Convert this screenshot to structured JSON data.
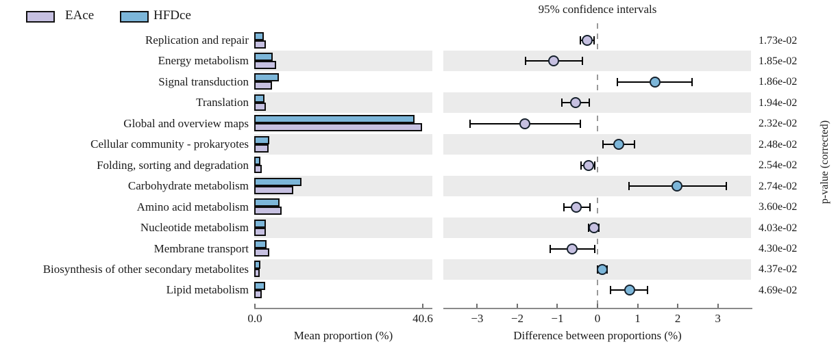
{
  "legend": {
    "items": [
      {
        "label": "EAce",
        "color": "#c6c0e1"
      },
      {
        "label": "HFDce",
        "color": "#7cb6d9"
      }
    ]
  },
  "right_panel_title": "95% confidence intervals",
  "right_side_label": "p-value (corrected)",
  "left_axis": {
    "label": "Mean proportion (%)",
    "tick_labels": [
      "0.0",
      "40.6"
    ]
  },
  "right_axis": {
    "label": "Difference between proportions (%)",
    "tick_labels": [
      "−3",
      "−2",
      "−1",
      "0",
      "1",
      "2",
      "3"
    ],
    "tick_values": [
      -3,
      -2,
      -1,
      0,
      1,
      2,
      3
    ]
  },
  "colors": {
    "eace": "#c6c0e1",
    "hfdce": "#7cb6d9",
    "stripe": "#ebebeb",
    "axis": "#8a8a8a",
    "dashed_line": "#999999",
    "bar_border": "#0d0d0d",
    "errorbar": "#000000"
  },
  "chart_data": {
    "type": "bar",
    "title": "95% confidence intervals",
    "xlabel_left": "Mean proportion (%)",
    "xlabel_right": "Difference between proportions (%)",
    "left_xlim": [
      0,
      40.6
    ],
    "right_xlim": [
      -3.85,
      3.85
    ],
    "grid": false,
    "legend_position": "top-left",
    "categories": [
      "Replication and repair",
      "Energy metabolism",
      "Signal transduction",
      "Translation",
      "Global and overview maps",
      "Cellular community - prokaryotes",
      "Folding, sorting and degradation",
      "Carbohydrate metabolism",
      "Amino acid metabolism",
      "Nucleotide metabolism",
      "Membrane transport",
      "Biosynthesis of other secondary metabolites",
      "Lipid metabolism"
    ],
    "series": [
      {
        "name": "EAce",
        "values": [
          2.75,
          5.35,
          4.3,
          2.85,
          40.6,
          3.5,
          1.9,
          9.4,
          6.7,
          2.85,
          3.7,
          1.3,
          1.9
        ]
      },
      {
        "name": "HFDce",
        "values": [
          2.3,
          4.4,
          5.9,
          2.5,
          38.8,
          3.7,
          1.5,
          11.4,
          6.1,
          2.75,
          3.0,
          1.45,
          2.7
        ]
      }
    ],
    "differences": {
      "values": [
        -0.26,
        -1.09,
        1.43,
        -0.55,
        -1.81,
        0.53,
        -0.22,
        1.98,
        -0.53,
        -0.09,
        -0.63,
        0.12,
        0.8
      ],
      "ci_low": [
        -0.43,
        -1.79,
        0.5,
        -0.89,
        -3.18,
        0.14,
        -0.41,
        0.79,
        -0.84,
        -0.22,
        -1.18,
        0.0,
        0.32
      ],
      "ci_high": [
        -0.09,
        -0.38,
        2.36,
        -0.21,
        -0.43,
        0.92,
        -0.07,
        3.21,
        -0.19,
        0.04,
        -0.07,
        0.24,
        1.25
      ],
      "dot_group": [
        "EAce",
        "EAce",
        "HFDce",
        "EAce",
        "EAce",
        "HFDce",
        "EAce",
        "HFDce",
        "EAce",
        "EAce",
        "EAce",
        "HFDce",
        "HFDce"
      ]
    },
    "p_values": [
      "1.73e-02",
      "1.85e-02",
      "1.86e-02",
      "1.94e-02",
      "2.32e-02",
      "2.48e-02",
      "2.54e-02",
      "2.74e-02",
      "3.60e-02",
      "4.03e-02",
      "4.30e-02",
      "4.37e-02",
      "4.69e-02"
    ]
  }
}
